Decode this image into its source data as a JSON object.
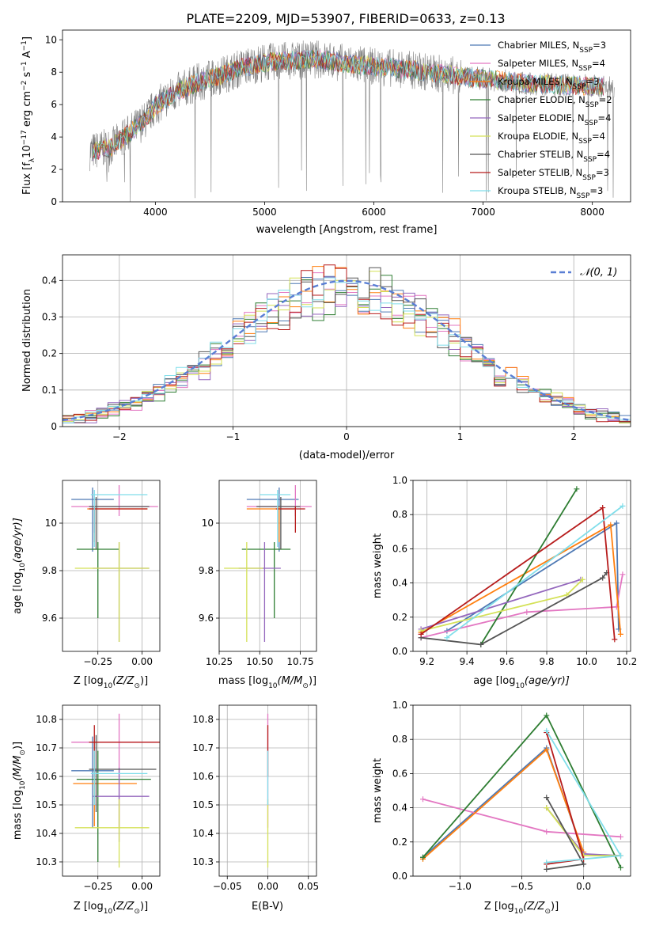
{
  "title": "PLATE=2209, MJD=53907, FIBERID=0633, z=0.13",
  "colors": {
    "Chabrier MILES": "#4e79b4",
    "Salpeter MILES": "#e377c2",
    "Kroupa MILES": "#ff7f0e",
    "Chabrier ELODIE": "#2e7d32",
    "Salpeter ELODIE": "#9467bd",
    "Kroupa ELODIE": "#d4e157",
    "Chabrier STELIB": "#555555",
    "Salpeter STELIB": "#b71c1c",
    "Kroupa STELIB": "#80deea",
    "line_blue": "#5a7fd4",
    "line_pink": "#e377c2",
    "line_orange": "#e07b39",
    "line_green": "#5a8a6a",
    "line_purple": "#9467bd",
    "line_yellow": "#cddc39",
    "line_gray": "#4d4d4d",
    "line_red": "#a31515",
    "line_cyan": "#80deea",
    "spectrum": "#808080"
  },
  "chart_data": [
    {
      "type": "line",
      "id": "spectrum",
      "xlabel": "wavelength [Angstrom, rest frame]",
      "ylabel_parts": [
        "Flux [f",
        "λ",
        "10",
        "−17",
        " erg cm",
        "−2",
        " s",
        "−1",
        " A",
        "−1",
        "]"
      ],
      "xlim": [
        3150,
        8350
      ],
      "ylim": [
        0,
        10.6
      ],
      "xticks": [
        4000,
        5000,
        6000,
        7000,
        8000
      ],
      "yticks": [
        0,
        2,
        4,
        6,
        8,
        10
      ],
      "grid": false,
      "legend_position": "top-right",
      "observed_range": [
        3400,
        8200
      ],
      "series": [
        {
          "name": "Chabrier MILES",
          "nssp": 3
        },
        {
          "name": "Salpeter MILES",
          "nssp": 4
        },
        {
          "name": "Kroupa MILES",
          "nssp": 3
        },
        {
          "name": "Chabrier ELODIE",
          "nssp": 2
        },
        {
          "name": "Salpeter ELODIE",
          "nssp": 4
        },
        {
          "name": "Kroupa ELODIE",
          "nssp": 4
        },
        {
          "name": "Chabrier STELIB",
          "nssp": 4
        },
        {
          "name": "Salpeter STELIB",
          "nssp": 3
        },
        {
          "name": "Kroupa STELIB",
          "nssp": 3
        }
      ],
      "continuum_points": [
        [
          3400,
          3.1
        ],
        [
          3600,
          3.4
        ],
        [
          3750,
          4.2
        ],
        [
          3900,
          5.0
        ],
        [
          4000,
          5.9
        ],
        [
          4200,
          6.8
        ],
        [
          4400,
          7.4
        ],
        [
          4600,
          7.8
        ],
        [
          4800,
          8.3
        ],
        [
          5000,
          8.6
        ],
        [
          5200,
          8.7
        ],
        [
          5500,
          8.8
        ],
        [
          5800,
          8.5
        ],
        [
          6100,
          8.3
        ],
        [
          6400,
          8.1
        ],
        [
          6700,
          7.8
        ],
        [
          7000,
          7.6
        ],
        [
          7400,
          7.3
        ],
        [
          7800,
          7.2
        ],
        [
          8200,
          7.1
        ]
      ]
    },
    {
      "type": "histogram",
      "id": "residuals",
      "xlabel": "(data-model)/error",
      "ylabel": "Normed distribution",
      "xlim": [
        -2.5,
        2.5
      ],
      "ylim": [
        0,
        0.47
      ],
      "xticks": [
        -2,
        -1,
        0,
        1,
        2
      ],
      "yticks": [
        0.0,
        0.1,
        0.2,
        0.3,
        0.4
      ],
      "grid": true,
      "bin_width": 0.1,
      "reference_curve": "N(0,1)",
      "reference_label": "𝒩(0, 1)",
      "legend_position": "top-right"
    },
    {
      "type": "scatter",
      "id": "age-vs-Z",
      "xlabel_parts": [
        "Z [log",
        "10",
        "(Z/Z",
        "⊙",
        ")]"
      ],
      "ylabel_parts": [
        "age  [log",
        "10",
        "(age/yr)]"
      ],
      "xlim": [
        -0.45,
        0.1
      ],
      "ylim": [
        9.46,
        10.18
      ],
      "xticks": [
        -0.25,
        0.0
      ],
      "yticks": [
        9.6,
        9.8,
        10.0
      ],
      "grid": true,
      "points": [
        {
          "series": "Chabrier MILES",
          "x": -0.28,
          "y": 10.1,
          "xerr": [
            0.12,
            0.12
          ],
          "yerr": [
            0.22,
            0.05
          ]
        },
        {
          "series": "Salpeter MILES",
          "x": -0.13,
          "y": 10.07,
          "xerr": [
            0.27,
            0.22
          ],
          "yerr": [
            0.04,
            0.09
          ]
        },
        {
          "series": "Kroupa MILES",
          "x": -0.27,
          "y": 10.06,
          "xerr": [
            0.04,
            0.3
          ],
          "yerr": [
            0.14,
            0.01
          ]
        },
        {
          "series": "Chabrier ELODIE",
          "x": -0.25,
          "y": 9.89,
          "xerr": [
            0.12,
            0.12
          ],
          "yerr": [
            0.29,
            0.03
          ]
        },
        {
          "series": "Salpeter ELODIE",
          "x": -0.13,
          "y": 9.81,
          "xerr": [
            0.15,
            0.17
          ],
          "yerr": [
            0.31,
            0.11
          ]
        },
        {
          "series": "Kroupa ELODIE",
          "x": -0.13,
          "y": 9.81,
          "xerr": [
            0.25,
            0.17
          ],
          "yerr": [
            0.31,
            0.11
          ]
        },
        {
          "series": "Chabrier STELIB",
          "x": -0.26,
          "y": 10.07,
          "xerr": [
            0.04,
            0.3
          ],
          "yerr": [
            0.18,
            0.04
          ]
        },
        {
          "series": "Salpeter STELIB",
          "x": -0.27,
          "y": 10.06,
          "xerr": [
            0.03,
            0.3
          ],
          "yerr": [
            0.1,
            0.01
          ]
        },
        {
          "series": "Kroupa STELIB",
          "x": -0.27,
          "y": 10.12,
          "xerr": [
            0.02,
            0.3
          ],
          "yerr": [
            0.22,
            0.02
          ]
        }
      ]
    },
    {
      "type": "scatter",
      "id": "age-vs-mass",
      "xlabel_parts": [
        "mass [log",
        "10",
        "(M/M",
        "⊙",
        ")]"
      ],
      "xlim": [
        10.25,
        10.85
      ],
      "ylim": [
        9.46,
        10.18
      ],
      "xticks": [
        10.25,
        10.5,
        10.75
      ],
      "yticks": [
        9.6,
        9.8,
        10.0
      ],
      "grid": true,
      "points": [
        {
          "series": "Chabrier MILES",
          "x": 10.62,
          "y": 10.1,
          "xerr": [
            0.2,
            0.12
          ],
          "yerr": [
            0.22,
            0.05
          ]
        },
        {
          "series": "Salpeter MILES",
          "x": 10.72,
          "y": 10.07,
          "xerr": [
            0.3,
            0.1
          ],
          "yerr": [
            0.04,
            0.09
          ]
        },
        {
          "series": "Kroupa MILES",
          "x": 10.62,
          "y": 10.06,
          "xerr": [
            0.2,
            0.1
          ],
          "yerr": [
            0.14,
            0.01
          ]
        },
        {
          "series": "Chabrier ELODIE",
          "x": 10.59,
          "y": 9.89,
          "xerr": [
            0.2,
            0.1
          ],
          "yerr": [
            0.29,
            0.03
          ]
        },
        {
          "series": "Salpeter ELODIE",
          "x": 10.53,
          "y": 9.81,
          "xerr": [
            0.16,
            0.1
          ],
          "yerr": [
            0.31,
            0.11
          ]
        },
        {
          "series": "Kroupa ELODIE",
          "x": 10.42,
          "y": 9.81,
          "xerr": [
            0.14,
            0.1
          ],
          "yerr": [
            0.31,
            0.11
          ]
        },
        {
          "series": "Chabrier STELIB",
          "x": 10.63,
          "y": 10.07,
          "xerr": [
            0.15,
            0.12
          ],
          "yerr": [
            0.18,
            0.04
          ]
        },
        {
          "series": "Salpeter STELIB",
          "x": 10.72,
          "y": 10.06,
          "xerr": [
            0.12,
            0.06
          ],
          "yerr": [
            0.1,
            0.01
          ]
        },
        {
          "series": "Kroupa STELIB",
          "x": 10.61,
          "y": 10.12,
          "xerr": [
            0.11,
            0.08
          ],
          "yerr": [
            0.22,
            0.02
          ]
        }
      ]
    },
    {
      "type": "line",
      "id": "mass-weight-vs-age",
      "xlabel_parts": [
        "age  [log",
        "10",
        "(age/yr)]"
      ],
      "ylabel": "mass weight",
      "xlim": [
        9.13,
        10.22
      ],
      "ylim": [
        0,
        1
      ],
      "xticks": [
        9.2,
        9.4,
        9.6,
        9.8,
        10.0,
        10.2
      ],
      "yticks": [
        0.0,
        0.2,
        0.4,
        0.6,
        0.8,
        1.0
      ],
      "grid": true,
      "series": [
        {
          "name": "Chabrier MILES",
          "points": [
            [
              9.3,
              0.12
            ],
            [
              10.15,
              0.75
            ],
            [
              10.16,
              0.13
            ]
          ]
        },
        {
          "name": "Salpeter MILES",
          "points": [
            [
              9.17,
              0.08
            ],
            [
              9.7,
              0.23
            ],
            [
              10.15,
              0.26
            ],
            [
              10.18,
              0.45
            ]
          ]
        },
        {
          "name": "Kroupa MILES",
          "points": [
            [
              9.17,
              0.11
            ],
            [
              10.12,
              0.74
            ],
            [
              10.17,
              0.1
            ]
          ]
        },
        {
          "name": "Chabrier ELODIE",
          "points": [
            [
              9.47,
              0.04
            ],
            [
              9.95,
              0.95
            ]
          ]
        },
        {
          "name": "Salpeter ELODIE",
          "points": [
            [
              9.17,
              0.13
            ],
            [
              9.97,
              0.42
            ]
          ]
        },
        {
          "name": "Kroupa ELODIE",
          "points": [
            [
              9.17,
              0.12
            ],
            [
              9.9,
              0.33
            ],
            [
              9.98,
              0.42
            ]
          ]
        },
        {
          "name": "Chabrier STELIB",
          "points": [
            [
              9.17,
              0.08
            ],
            [
              9.47,
              0.04
            ],
            [
              10.08,
              0.43
            ],
            [
              10.1,
              0.46
            ]
          ]
        },
        {
          "name": "Salpeter STELIB",
          "points": [
            [
              9.17,
              0.1
            ],
            [
              10.08,
              0.84
            ],
            [
              10.14,
              0.07
            ]
          ]
        },
        {
          "name": "Kroupa STELIB",
          "points": [
            [
              9.3,
              0.08
            ],
            [
              10.18,
              0.85
            ]
          ]
        }
      ]
    },
    {
      "type": "scatter",
      "id": "mass-vs-Z",
      "xlabel_parts": [
        "Z [log",
        "10",
        "(Z/Z",
        "⊙",
        ")]"
      ],
      "ylabel_parts": [
        "mass [log",
        "10",
        "(M/M",
        "⊙",
        ")]"
      ],
      "xlim": [
        -0.45,
        0.1
      ],
      "ylim": [
        10.25,
        10.85
      ],
      "xticks": [
        -0.25,
        0.0
      ],
      "yticks": [
        10.3,
        10.4,
        10.5,
        10.6,
        10.7,
        10.8
      ],
      "grid": true,
      "points": [
        {
          "series": "Chabrier MILES",
          "x": -0.28,
          "y": 10.62,
          "xerr": [
            0.12,
            0.12
          ],
          "yerr": [
            0.2,
            0.12
          ]
        },
        {
          "series": "Salpeter MILES",
          "x": -0.13,
          "y": 10.72,
          "xerr": [
            0.27,
            0.22
          ],
          "yerr": [
            0.3,
            0.1
          ]
        },
        {
          "series": "Kroupa MILES",
          "x": -0.27,
          "y": 10.575,
          "xerr": [
            0.12,
            0.24
          ],
          "yerr": [
            0.15,
            0.1
          ]
        },
        {
          "series": "Chabrier ELODIE",
          "x": -0.25,
          "y": 10.59,
          "xerr": [
            0.12,
            0.3
          ],
          "yerr": [
            0.29,
            0.1
          ]
        },
        {
          "series": "Salpeter ELODIE",
          "x": -0.13,
          "y": 10.53,
          "xerr": [
            0.15,
            0.17
          ],
          "yerr": [
            0.16,
            0.1
          ]
        },
        {
          "series": "Kroupa ELODIE",
          "x": -0.13,
          "y": 10.42,
          "xerr": [
            0.25,
            0.17
          ],
          "yerr": [
            0.14,
            0.1
          ]
        },
        {
          "series": "Chabrier STELIB",
          "x": -0.26,
          "y": 10.625,
          "xerr": [
            0.04,
            0.34
          ],
          "yerr": [
            0.15,
            0.12
          ]
        },
        {
          "series": "Salpeter STELIB",
          "x": -0.27,
          "y": 10.72,
          "xerr": [
            0.03,
            0.37
          ],
          "yerr": [
            0.12,
            0.06
          ]
        },
        {
          "series": "Kroupa STELIB",
          "x": -0.27,
          "y": 10.61,
          "xerr": [
            0.02,
            0.3
          ],
          "yerr": [
            0.11,
            0.08
          ]
        }
      ]
    },
    {
      "type": "scatter",
      "id": "mass-vs-EBV",
      "xlabel": "E(B-V)",
      "xlim": [
        -0.06,
        0.06
      ],
      "ylim": [
        10.25,
        10.85
      ],
      "xticks": [
        -0.05,
        0.0,
        0.05
      ],
      "yticks": [
        10.3,
        10.4,
        10.5,
        10.6,
        10.7,
        10.8
      ],
      "grid": true,
      "points": [
        {
          "series": "Salpeter MILES",
          "x": 0.0,
          "y": 10.72,
          "yerr": [
            0.3,
            0.1
          ]
        },
        {
          "series": "Salpeter STELIB",
          "x": 0.0,
          "y": 10.72,
          "yerr": [
            0.12,
            0.06
          ]
        },
        {
          "series": "Kroupa ELODIE",
          "x": 0.0,
          "y": 10.42,
          "yerr": [
            0.14,
            0.1
          ]
        },
        {
          "series": "Kroupa STELIB",
          "x": 0.0,
          "y": 10.61,
          "yerr": [
            0.11,
            0.08
          ]
        }
      ]
    },
    {
      "type": "line",
      "id": "mass-weight-vs-Z",
      "xlabel_parts": [
        "Z [log",
        "10",
        "(Z/Z",
        "⊙",
        ")]"
      ],
      "ylabel": "mass weight",
      "xlim": [
        -1.38,
        0.38
      ],
      "ylim": [
        0,
        1
      ],
      "xticks": [
        -1.0,
        -0.5,
        0.0
      ],
      "yticks": [
        0.0,
        0.2,
        0.4,
        0.6,
        0.8,
        1.0
      ],
      "grid": true,
      "series": [
        {
          "name": "Chabrier MILES",
          "points": [
            [
              -1.3,
              0.11
            ],
            [
              -0.3,
              0.75
            ],
            [
              0.0,
              0.13
            ]
          ]
        },
        {
          "name": "Salpeter MILES",
          "points": [
            [
              -1.3,
              0.45
            ],
            [
              -0.3,
              0.26
            ],
            [
              0.3,
              0.23
            ]
          ]
        },
        {
          "name": "Kroupa MILES",
          "points": [
            [
              -1.3,
              0.1
            ],
            [
              -0.3,
              0.74
            ],
            [
              0.0,
              0.14
            ]
          ]
        },
        {
          "name": "Chabrier ELODIE",
          "points": [
            [
              -1.3,
              0.11
            ],
            [
              -0.3,
              0.94
            ],
            [
              0.3,
              0.05
            ]
          ]
        },
        {
          "name": "Salpeter ELODIE",
          "points": [
            [
              -0.3,
              0.4
            ],
            [
              0.0,
              0.13
            ],
            [
              0.3,
              0.12
            ]
          ]
        },
        {
          "name": "Kroupa ELODIE",
          "points": [
            [
              -0.3,
              0.4
            ],
            [
              0.0,
              0.12
            ],
            [
              0.3,
              0.12
            ]
          ]
        },
        {
          "name": "Chabrier STELIB",
          "points": [
            [
              -0.3,
              0.04
            ],
            [
              0.0,
              0.07
            ],
            [
              -0.3,
              0.46
            ]
          ]
        },
        {
          "name": "Salpeter STELIB",
          "points": [
            [
              -0.3,
              0.07
            ],
            [
              0.0,
              0.1
            ],
            [
              -0.3,
              0.84
            ]
          ]
        },
        {
          "name": "Kroupa STELIB",
          "points": [
            [
              -0.3,
              0.08
            ],
            [
              0.3,
              0.12
            ],
            [
              -0.3,
              0.85
            ]
          ]
        }
      ]
    }
  ]
}
